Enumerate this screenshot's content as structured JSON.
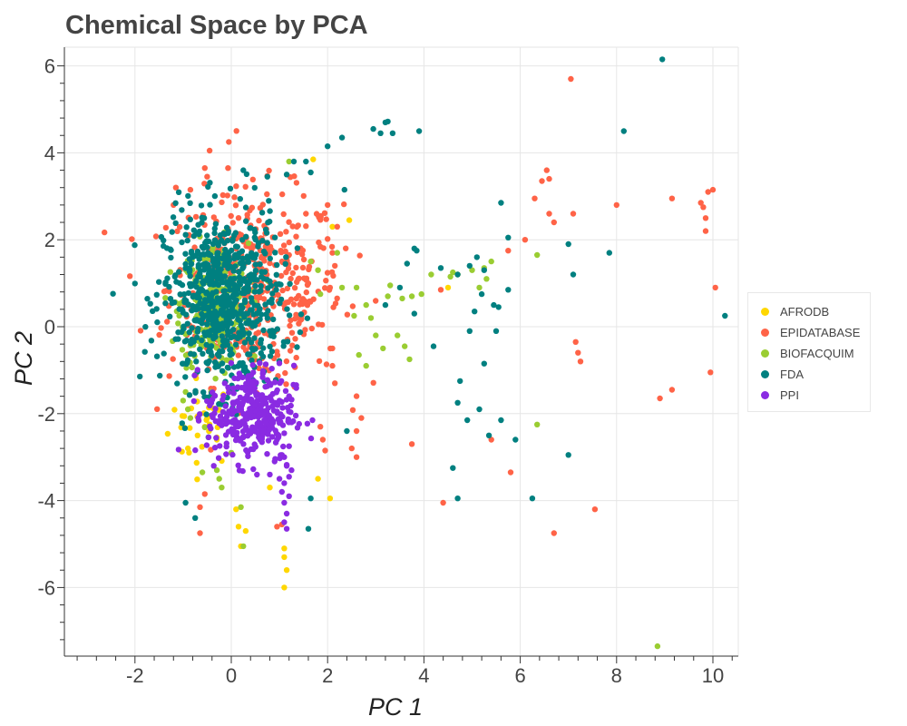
{
  "chart_data": {
    "type": "scatter",
    "title": "Chemical Space by PCA",
    "xlabel": "PC 1",
    "ylabel": "PC 2",
    "xlim": [
      -3.4,
      10.5
    ],
    "ylim": [
      -7.5,
      6.4
    ],
    "grid": true,
    "legend_position": "right",
    "x_ticks": [
      -2,
      0,
      2,
      4,
      6,
      8,
      10
    ],
    "y_ticks": [
      -6,
      -4,
      -2,
      0,
      2,
      4,
      6
    ],
    "series": [
      {
        "name": "AFRODB",
        "color": "#FFD700",
        "cluster": {
          "cx": -0.6,
          "cy": -2.2,
          "sx": 0.35,
          "sy": 0.5,
          "n": 30
        },
        "points": [
          [
            -1.0,
            -2.3
          ],
          [
            -0.7,
            -2.5
          ],
          [
            -0.5,
            -2.1
          ],
          [
            -0.9,
            -1.9
          ],
          [
            -0.3,
            -2.6
          ],
          [
            0.1,
            -4.2
          ],
          [
            0.15,
            -4.6
          ],
          [
            0.3,
            -4.7
          ],
          [
            0.2,
            -5.05
          ],
          [
            1.1,
            -5.1
          ],
          [
            1.1,
            -5.3
          ],
          [
            1.15,
            -5.6
          ],
          [
            1.1,
            -6.0
          ],
          [
            2.05,
            -3.95
          ],
          [
            1.8,
            -3.5
          ],
          [
            0.8,
            -3.7
          ],
          [
            4.5,
            0.9
          ],
          [
            4.7,
            1.2
          ],
          [
            2.45,
            2.45
          ],
          [
            2.1,
            2.3
          ],
          [
            -0.55,
            -2.3
          ],
          [
            -0.9,
            -2.8
          ],
          [
            1.7,
            3.85
          ]
        ]
      },
      {
        "name": "EPIDATABASE",
        "color": "#FF6347",
        "cluster": {
          "cx": 0.5,
          "cy": 0.9,
          "sx": 0.9,
          "sy": 1.1,
          "n": 450
        },
        "points": [
          [
            -0.05,
            4.25
          ],
          [
            -0.45,
            4.05
          ],
          [
            -0.55,
            3.65
          ],
          [
            -0.5,
            3.45
          ],
          [
            -1.15,
            3.2
          ],
          [
            -0.85,
            3.15
          ],
          [
            -1.2,
            2.8
          ],
          [
            2.0,
            2.8
          ],
          [
            1.55,
            2.6
          ],
          [
            2.2,
            2.3
          ],
          [
            2.1,
            1.7
          ],
          [
            2.15,
            1.4
          ],
          [
            2.05,
            0.9
          ],
          [
            2.1,
            -0.5
          ],
          [
            2.1,
            -0.9
          ],
          [
            2.15,
            -1.3
          ],
          [
            2.6,
            -1.6
          ],
          [
            2.7,
            -2.1
          ],
          [
            2.6,
            -2.4
          ],
          [
            2.5,
            -2.8
          ],
          [
            2.6,
            -3.0
          ],
          [
            1.85,
            -2.3
          ],
          [
            1.9,
            -2.6
          ],
          [
            1.95,
            -2.85
          ],
          [
            3.75,
            -2.7
          ],
          [
            4.4,
            -4.05
          ],
          [
            4.35,
            0.85
          ],
          [
            5.4,
            -2.6
          ],
          [
            5.8,
            -3.35
          ],
          [
            5.75,
            1.75
          ],
          [
            6.1,
            2.0
          ],
          [
            6.3,
            2.95
          ],
          [
            6.45,
            3.35
          ],
          [
            6.55,
            3.6
          ],
          [
            6.6,
            3.4
          ],
          [
            6.6,
            2.6
          ],
          [
            6.7,
            2.4
          ],
          [
            7.05,
            5.7
          ],
          [
            7.1,
            2.6
          ],
          [
            7.15,
            -0.35
          ],
          [
            7.2,
            -0.6
          ],
          [
            7.25,
            -0.8
          ],
          [
            6.7,
            -4.75
          ],
          [
            7.55,
            -4.2
          ],
          [
            8.0,
            2.8
          ],
          [
            8.9,
            -1.65
          ],
          [
            9.15,
            2.95
          ],
          [
            9.15,
            -1.45
          ],
          [
            9.75,
            2.85
          ],
          [
            9.8,
            2.75
          ],
          [
            9.85,
            2.5
          ],
          [
            9.85,
            2.2
          ],
          [
            9.9,
            3.1
          ],
          [
            10.0,
            3.15
          ],
          [
            10.05,
            0.9
          ],
          [
            9.95,
            -1.05
          ],
          [
            -0.65,
            -4.75
          ],
          [
            -0.65,
            -4.15
          ],
          [
            -0.55,
            -3.85
          ],
          [
            0.95,
            -4.6
          ],
          [
            1.05,
            -4.55
          ]
        ]
      },
      {
        "name": "BIOFACQUIM",
        "color": "#9ACD32",
        "cluster": {
          "cx": -0.35,
          "cy": 0.5,
          "sx": 0.35,
          "sy": 0.7,
          "n": 260
        },
        "points": [
          [
            -1.0,
            -1.7
          ],
          [
            -0.9,
            -1.9
          ],
          [
            -0.85,
            -2.1
          ],
          [
            -0.95,
            -1.5
          ],
          [
            -0.6,
            -3.35
          ],
          [
            -0.25,
            -3.5
          ],
          [
            -0.2,
            -3.7
          ],
          [
            -0.3,
            -3.3
          ],
          [
            0.0,
            -2.9
          ],
          [
            0.2,
            -4.15
          ],
          [
            0.25,
            -5.05
          ],
          [
            1.2,
            3.8
          ],
          [
            1.65,
            1.5
          ],
          [
            1.8,
            1.3
          ],
          [
            1.85,
            0.75
          ],
          [
            2.2,
            1.7
          ],
          [
            2.3,
            0.9
          ],
          [
            2.6,
            0.9
          ],
          [
            2.8,
            0.5
          ],
          [
            2.9,
            0.2
          ],
          [
            3.0,
            -0.2
          ],
          [
            3.15,
            -0.5
          ],
          [
            3.25,
            0.7
          ],
          [
            3.3,
            0.95
          ],
          [
            3.45,
            -0.2
          ],
          [
            3.55,
            0.65
          ],
          [
            3.6,
            -0.45
          ],
          [
            3.7,
            -0.75
          ],
          [
            3.75,
            0.7
          ],
          [
            3.95,
            0.75
          ],
          [
            4.15,
            1.2
          ],
          [
            4.55,
            1.15
          ],
          [
            4.6,
            1.25
          ],
          [
            5.0,
            1.3
          ],
          [
            5.15,
            0.9
          ],
          [
            5.25,
            1.35
          ],
          [
            5.4,
            1.5
          ],
          [
            5.3,
            1.1
          ],
          [
            6.35,
            1.65
          ],
          [
            6.35,
            -2.25
          ],
          [
            8.85,
            -7.35
          ],
          [
            2.65,
            -0.65
          ],
          [
            2.8,
            -0.9
          ],
          [
            2.55,
            0.25
          ]
        ]
      },
      {
        "name": "FDA",
        "color": "#008080",
        "cluster": {
          "cx": -0.2,
          "cy": 0.6,
          "sx": 0.6,
          "sy": 1.0,
          "n": 700
        },
        "points": [
          [
            8.95,
            6.15
          ],
          [
            3.25,
            4.72
          ],
          [
            3.2,
            4.7
          ],
          [
            2.95,
            4.55
          ],
          [
            3.1,
            4.45
          ],
          [
            3.9,
            4.5
          ],
          [
            3.35,
            4.45
          ],
          [
            2.3,
            4.35
          ],
          [
            2.0,
            4.15
          ],
          [
            8.15,
            4.5
          ],
          [
            1.55,
            3.8
          ],
          [
            1.3,
            3.8
          ],
          [
            1.65,
            3.55
          ],
          [
            0.25,
            3.6
          ],
          [
            0.75,
            3.45
          ],
          [
            1.15,
            3.5
          ],
          [
            2.35,
            3.15
          ],
          [
            5.6,
            2.85
          ],
          [
            5.75,
            2.05
          ],
          [
            7.0,
            1.9
          ],
          [
            7.1,
            1.2
          ],
          [
            7.85,
            1.7
          ],
          [
            10.25,
            0.25
          ],
          [
            3.8,
            1.8
          ],
          [
            3.85,
            1.75
          ],
          [
            4.35,
            1.35
          ],
          [
            4.7,
            1.2
          ],
          [
            4.95,
            1.4
          ],
          [
            5.1,
            1.6
          ],
          [
            5.25,
            1.3
          ],
          [
            5.75,
            0.85
          ],
          [
            5.2,
            0.75
          ],
          [
            5.05,
            0.35
          ],
          [
            5.45,
            0.5
          ],
          [
            5.55,
            0.45
          ],
          [
            5.5,
            -0.1
          ],
          [
            4.95,
            -0.1
          ],
          [
            4.2,
            -0.45
          ],
          [
            3.8,
            0.3
          ],
          [
            3.2,
            0.5
          ],
          [
            3.5,
            0.9
          ],
          [
            3.65,
            1.45
          ],
          [
            4.75,
            -1.25
          ],
          [
            4.7,
            -1.75
          ],
          [
            5.15,
            -1.9
          ],
          [
            5.35,
            -2.5
          ],
          [
            5.25,
            -0.85
          ],
          [
            4.9,
            -2.15
          ],
          [
            5.6,
            -2.15
          ],
          [
            5.9,
            -2.6
          ],
          [
            4.6,
            -3.25
          ],
          [
            4.7,
            -3.95
          ],
          [
            6.25,
            -3.95
          ],
          [
            7.0,
            -2.95
          ],
          [
            2.4,
            -2.4
          ],
          [
            1.65,
            -3.95
          ],
          [
            1.6,
            -4.65
          ],
          [
            -0.95,
            -4.05
          ],
          [
            -0.75,
            -4.4
          ]
        ]
      },
      {
        "name": "PPI",
        "color": "#8A2BE2",
        "cluster": {
          "cx": 0.4,
          "cy": -2.0,
          "sx": 0.45,
          "sy": 0.55,
          "n": 320
        },
        "points": [
          [
            1.1,
            -3.0
          ],
          [
            1.15,
            -3.2
          ],
          [
            1.2,
            -3.45
          ],
          [
            1.1,
            -3.6
          ],
          [
            1.05,
            -3.8
          ],
          [
            1.2,
            -3.9
          ],
          [
            1.1,
            -4.05
          ],
          [
            1.15,
            -4.3
          ],
          [
            1.1,
            -4.5
          ],
          [
            1.15,
            -4.65
          ],
          [
            1.0,
            -3.5
          ],
          [
            0.9,
            -3.1
          ],
          [
            0.8,
            -3.4
          ],
          [
            1.25,
            -3.3
          ],
          [
            1.05,
            -2.95
          ],
          [
            1.2,
            -2.75
          ],
          [
            0.95,
            -2.6
          ],
          [
            1.1,
            -2.45
          ],
          [
            1.25,
            -2.2
          ],
          [
            0.85,
            -2.2
          ],
          [
            0.95,
            -1.95
          ],
          [
            1.2,
            -1.6
          ],
          [
            1.0,
            -1.7
          ]
        ]
      }
    ]
  }
}
